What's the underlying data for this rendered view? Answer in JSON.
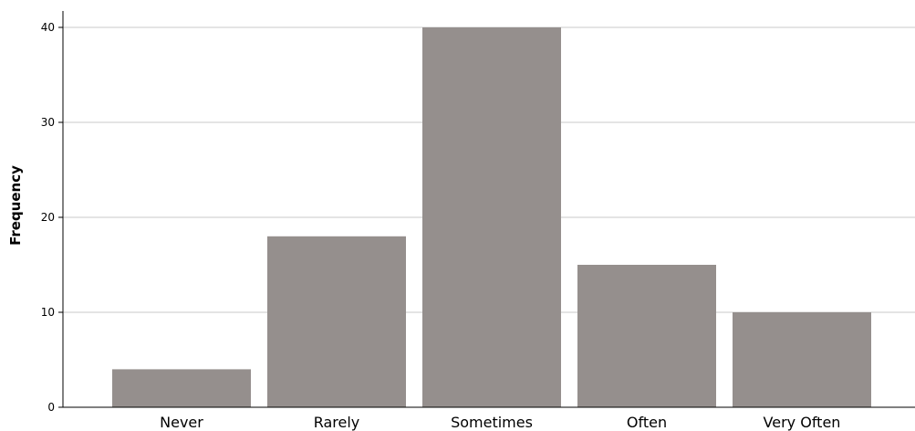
{
  "chart_data": {
    "type": "bar",
    "title": "",
    "xlabel": "",
    "ylabel": "Frequency",
    "categories": [
      "Never",
      "Rarely",
      "Sometimes",
      "Often",
      "Very Often"
    ],
    "values": [
      4,
      18,
      40,
      15,
      10
    ],
    "ylim": [
      0,
      42
    ],
    "yticks": [
      0,
      10,
      20,
      30,
      40
    ],
    "grid": true,
    "legend": "none",
    "colors": {
      "bar": "#958f8d",
      "grid": "#c9c9c9",
      "axis": "#000000"
    }
  }
}
